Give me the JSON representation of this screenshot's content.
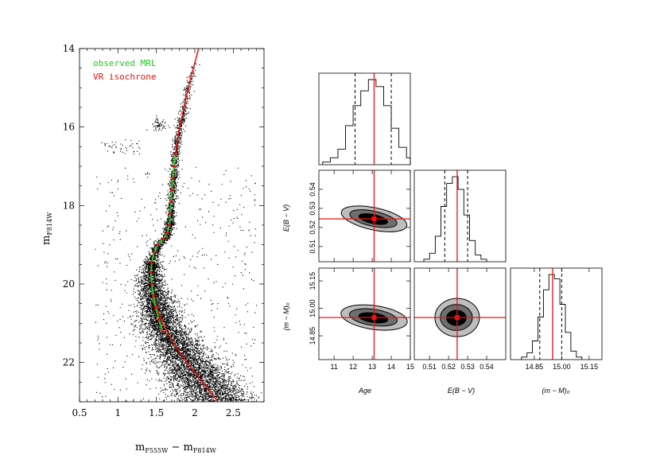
{
  "chart_data": [
    {
      "type": "scatter",
      "xlabel_main": "m",
      "xlabel_sub1": "F555W",
      "xlabel_mid": " − m",
      "xlabel_sub2": "F814W",
      "ylabel_main": "m",
      "ylabel_sub": "F814W",
      "xlim": [
        0.5,
        2.9
      ],
      "ylim": [
        23.0,
        14.0
      ],
      "x_ticks": [
        "0.5",
        "1",
        "1.5",
        "2",
        "2.5"
      ],
      "x_tick_values": [
        0.5,
        1.0,
        1.5,
        2.0,
        2.5
      ],
      "y_ticks": [
        "14",
        "16",
        "18",
        "20",
        "22"
      ],
      "y_tick_values": [
        14,
        16,
        18,
        20,
        22
      ],
      "legend": [
        {
          "label": "observed MRL",
          "color": "#22cc22"
        },
        {
          "label": "VR isochrone",
          "color": "#ee1111"
        }
      ],
      "series": [
        {
          "name": "VR isochrone",
          "color": "#ee1111",
          "x": [
            2.3,
            2.1,
            1.9,
            1.72,
            1.58,
            1.49,
            1.44,
            1.43,
            1.45,
            1.52,
            1.62,
            1.67,
            1.69,
            1.71,
            1.73,
            1.76,
            1.8,
            1.86,
            1.94,
            2.05
          ],
          "y": [
            23.0,
            22.5,
            22.0,
            21.5,
            21.0,
            20.5,
            20.0,
            19.6,
            19.3,
            19.0,
            18.8,
            18.5,
            18.0,
            17.5,
            17.0,
            16.5,
            16.0,
            15.5,
            14.8,
            14.0
          ]
        },
        {
          "name": "observed MRL",
          "color": "#22cc22",
          "x": [
            1.58,
            1.53,
            1.49,
            1.46,
            1.44,
            1.43,
            1.44,
            1.47,
            1.52,
            1.59,
            1.64,
            1.67,
            1.68,
            1.69,
            1.7,
            1.71,
            1.73,
            1.75
          ],
          "y": [
            21.2,
            20.9,
            20.6,
            20.3,
            20.0,
            19.7,
            19.45,
            19.2,
            19.0,
            18.85,
            18.7,
            18.5,
            18.2,
            17.9,
            17.6,
            17.3,
            17.0,
            16.7
          ]
        }
      ]
    },
    {
      "type": "histogram",
      "panel": "Age marginal",
      "xlim": [
        10.2,
        15.0
      ],
      "bin_edges": [
        10.4,
        10.8,
        11.2,
        11.6,
        12.0,
        12.4,
        12.8,
        13.2,
        13.6,
        14.0,
        14.4,
        14.8,
        15.0
      ],
      "values": [
        3,
        8,
        18,
        45,
        68,
        85,
        98,
        90,
        68,
        42,
        20,
        8
      ],
      "best_fit": 13.1,
      "quantiles": [
        12.1,
        14.0
      ]
    },
    {
      "type": "contour",
      "panel": "Age vs E(B-V)",
      "xlim": [
        10.2,
        15.0
      ],
      "ylim": [
        0.502,
        0.55
      ],
      "x_ticks": [
        "11",
        "12",
        "13",
        "14",
        "15"
      ],
      "x_tick_values": [
        11,
        12,
        13,
        14,
        15
      ],
      "y_ticks": [
        "0.51",
        "0.52",
        "0.53",
        "0.54"
      ],
      "y_tick_values": [
        0.51,
        0.52,
        0.53,
        0.54
      ],
      "ylabel": "E(B − V)",
      "center": [
        13.1,
        0.5245
      ],
      "best_fit": [
        13.1,
        0.5245
      ]
    },
    {
      "type": "histogram",
      "panel": "E(B-V) marginal",
      "xlim": [
        0.502,
        0.55
      ],
      "bin_edges": [
        0.507,
        0.51,
        0.513,
        0.516,
        0.519,
        0.522,
        0.525,
        0.528,
        0.531,
        0.534,
        0.537,
        0.54
      ],
      "values": [
        3,
        10,
        30,
        65,
        92,
        100,
        85,
        55,
        25,
        8,
        3
      ],
      "best_fit": 0.5245,
      "quantiles": [
        0.518,
        0.53
      ]
    },
    {
      "type": "contour",
      "panel": "Age vs (m-M)0",
      "xlim": [
        10.2,
        15.0
      ],
      "ylim": [
        14.72,
        15.22
      ],
      "ylabel": "(m − M)₀",
      "y_ticks": [
        "14.85",
        "15.00",
        "15.15"
      ],
      "y_tick_values": [
        14.85,
        15.0,
        15.15
      ],
      "x_ticks": [
        "11",
        "12",
        "13",
        "14",
        "15"
      ],
      "x_tick_values": [
        11,
        12,
        13,
        14,
        15
      ],
      "xlabel": "Age",
      "center": [
        13.1,
        14.95
      ],
      "best_fit": [
        13.1,
        14.95
      ]
    },
    {
      "type": "contour",
      "panel": "E(B-V) vs (m-M)0",
      "xlim": [
        0.502,
        0.55
      ],
      "ylim": [
        14.72,
        15.22
      ],
      "x_ticks": [
        "0.51",
        "0.52",
        "0.53",
        "0.54"
      ],
      "x_tick_values": [
        0.51,
        0.52,
        0.53,
        0.54
      ],
      "xlabel": "E(B − V)",
      "center": [
        0.5245,
        14.95
      ],
      "best_fit": [
        0.5245,
        14.95
      ]
    },
    {
      "type": "histogram",
      "panel": "(m-M)0 marginal",
      "xlim": [
        14.72,
        15.22
      ],
      "bin_edges": [
        14.78,
        14.81,
        14.84,
        14.87,
        14.9,
        14.93,
        14.96,
        14.99,
        15.02,
        15.05,
        15.08,
        15.11
      ],
      "values": [
        3,
        8,
        22,
        50,
        82,
        100,
        95,
        65,
        32,
        10,
        3
      ],
      "x_ticks": [
        "14.85",
        "15.00",
        "15.15"
      ],
      "x_tick_values": [
        14.85,
        15.0,
        15.15
      ],
      "xlabel": "(m − M)₀",
      "best_fit": 14.95,
      "quantiles": [
        14.88,
        15.0
      ]
    }
  ]
}
